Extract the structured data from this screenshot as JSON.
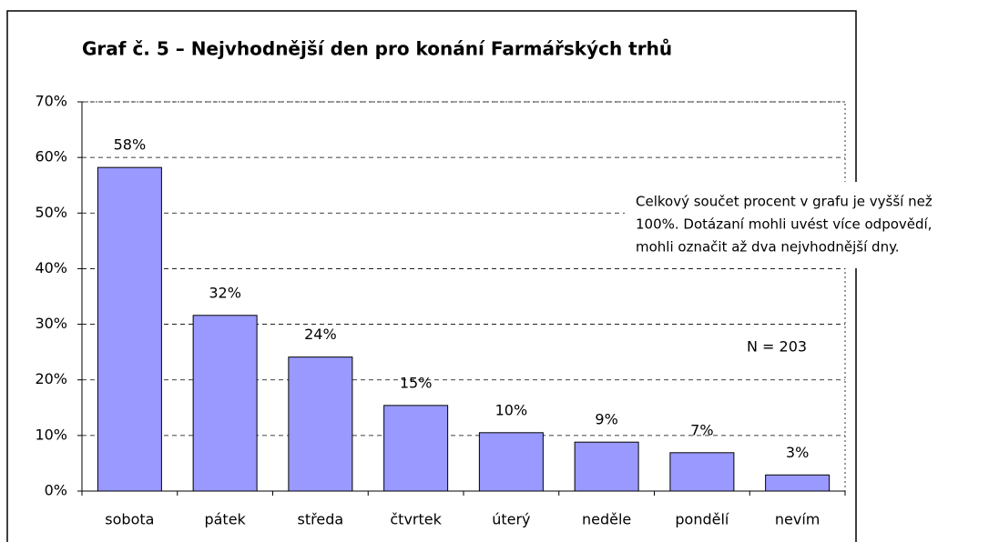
{
  "chart_data": {
    "type": "bar",
    "title": "Graf č. 5 – Nejvhodnější den pro konání Farmářských trhů",
    "categories": [
      "sobota",
      "pátek",
      "středa",
      "čtvrtek",
      "úterý",
      "neděle",
      "pondělí",
      "nevím"
    ],
    "values": [
      58.2,
      31.6,
      24.1,
      15.4,
      10.5,
      8.8,
      6.9,
      2.9
    ],
    "value_labels": [
      "58%",
      "32%",
      "24%",
      "15%",
      "10%",
      "9%",
      "7%",
      "3%"
    ],
    "color": "#9999ff",
    "ylim": [
      0,
      70
    ],
    "yticks": [
      {
        "value": 0,
        "label": "0%"
      },
      {
        "value": 10,
        "label": "10%"
      },
      {
        "value": 20,
        "label": "20%"
      },
      {
        "value": 30,
        "label": "30%"
      },
      {
        "value": 40,
        "label": "40%"
      },
      {
        "value": 50,
        "label": "50%"
      },
      {
        "value": 60,
        "label": "60%"
      },
      {
        "value": 70,
        "label": "70%"
      }
    ],
    "grid": true,
    "annotations": [
      "Celkový součet procent v grafu je vyšší než",
      "100%. Dotázaní mohli uvést více odpovědí,",
      "mohli označit až dva nejvhodnější dny.",
      "N = 203"
    ]
  }
}
